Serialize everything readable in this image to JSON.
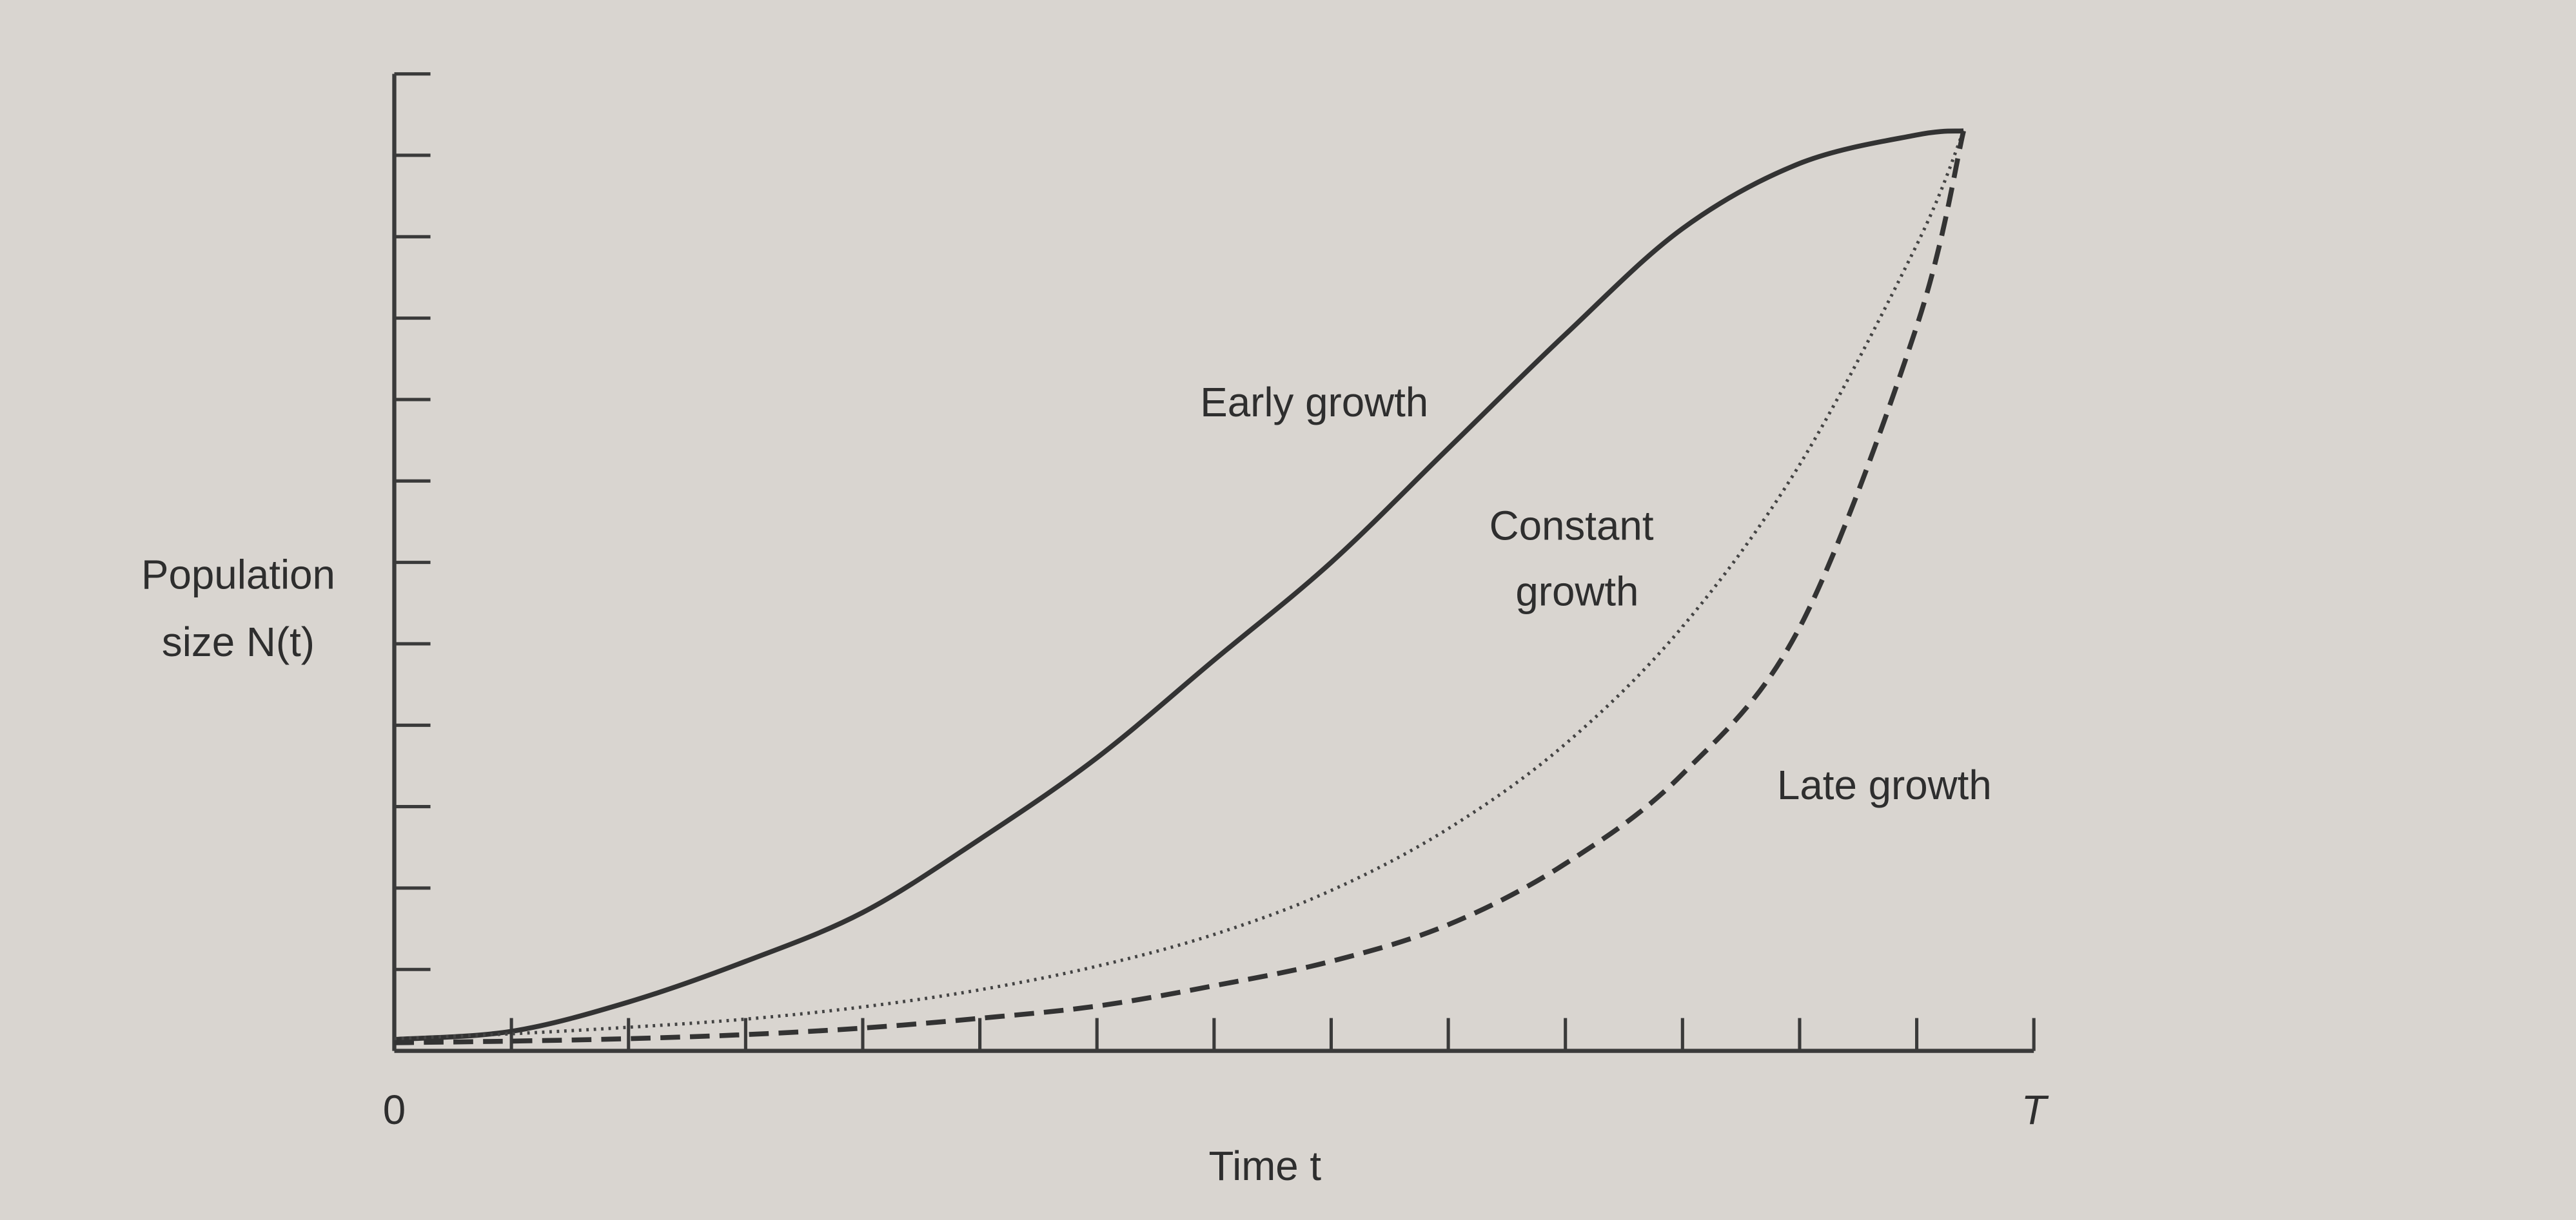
{
  "chart_data": {
    "type": "line",
    "x_label": "Time t",
    "y_label": [
      "Population",
      "size N(t)"
    ],
    "x": [
      0,
      1,
      2,
      3,
      4,
      5,
      6,
      7,
      8,
      9,
      10,
      11,
      12,
      13,
      13.4
    ],
    "series": [
      {
        "name": "Early growth",
        "dash": "solid",
        "color": "#333333",
        "values": [
          0.14,
          0.24,
          0.6,
          1.1,
          1.7,
          2.6,
          3.6,
          4.8,
          6.0,
          7.4,
          8.8,
          10.1,
          10.9,
          11.25,
          11.3
        ]
      },
      {
        "name": "Constant growth",
        "dash": "dotted",
        "color": "#444444",
        "values": [
          0.15,
          0.21,
          0.29,
          0.39,
          0.54,
          0.75,
          1.04,
          1.43,
          1.97,
          2.73,
          3.77,
          5.21,
          7.2,
          9.9,
          11.3
        ]
      },
      {
        "name": "Late growth",
        "dash": "dashed",
        "color": "#333333",
        "values": [
          0.1,
          0.12,
          0.15,
          0.2,
          0.28,
          0.4,
          0.55,
          0.8,
          1.1,
          1.55,
          2.3,
          3.4,
          5.2,
          8.9,
          11.3
        ]
      }
    ],
    "xlim": [
      0,
      14
    ],
    "ylim": [
      0,
      12
    ],
    "xticks": [
      {
        "value": 0,
        "label": "0"
      },
      {
        "value": 14,
        "label": "T"
      }
    ],
    "xminorticks": [
      1,
      2,
      3,
      4,
      5,
      6,
      7,
      8,
      9,
      10,
      11,
      12,
      13
    ],
    "yminorticks": [
      1,
      2,
      3,
      4,
      5,
      6,
      7,
      8,
      9,
      10,
      11
    ],
    "grid": false
  }
}
